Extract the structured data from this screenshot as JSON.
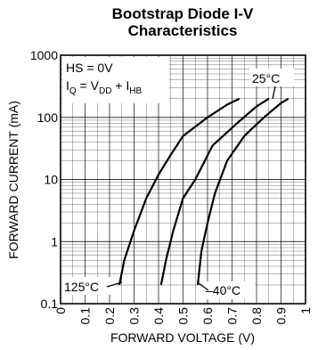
{
  "chart_data": {
    "type": "line",
    "title_line1": "Bootstrap Diode I-V",
    "title_line2": "Characteristics",
    "xlabel": "FORWARD VOLTAGE (V)",
    "ylabel": "FORWARD CURRENT (mA)",
    "xlim": [
      0,
      1
    ],
    "ylim": [
      0.1,
      1000
    ],
    "yscale": "log",
    "grid": true,
    "x_ticks": [
      "0",
      "0.1",
      "0.2",
      "0.3",
      "0.4",
      "0.5",
      "0.6",
      "0.7",
      "0.8",
      "0.9",
      "1"
    ],
    "y_ticks": [
      "0.1",
      "1",
      "10",
      "100",
      "1000"
    ],
    "conditions": {
      "line1": "HS = 0V",
      "line2_main": "I",
      "line2_sub": "Q",
      "line2_eq": " = V",
      "line2_sub2": "DD",
      "line2_plus": " + I",
      "line2_sub3": "HB"
    },
    "series": [
      {
        "name": "125°C",
        "points": [
          [
            0.24,
            0.2
          ],
          [
            0.26,
            0.5
          ],
          [
            0.3,
            1.5
          ],
          [
            0.35,
            5
          ],
          [
            0.4,
            12
          ],
          [
            0.45,
            25
          ],
          [
            0.5,
            50
          ],
          [
            0.6,
            100
          ],
          [
            0.68,
            160
          ],
          [
            0.73,
            200
          ]
        ]
      },
      {
        "name": "25°C",
        "points": [
          [
            0.41,
            0.2
          ],
          [
            0.43,
            0.5
          ],
          [
            0.46,
            1.5
          ],
          [
            0.5,
            5
          ],
          [
            0.55,
            10
          ],
          [
            0.62,
            35
          ],
          [
            0.72,
            80
          ],
          [
            0.8,
            150
          ],
          [
            0.85,
            200
          ]
        ]
      },
      {
        "name": "–40°C",
        "points": [
          [
            0.56,
            0.2
          ],
          [
            0.575,
            0.7
          ],
          [
            0.6,
            2
          ],
          [
            0.63,
            6
          ],
          [
            0.68,
            20
          ],
          [
            0.75,
            50
          ],
          [
            0.83,
            100
          ],
          [
            0.9,
            170
          ],
          [
            0.93,
            200
          ]
        ]
      }
    ],
    "series_labels": {
      "hot": "125°C",
      "room": "25°C",
      "cold": "–40°C"
    }
  }
}
